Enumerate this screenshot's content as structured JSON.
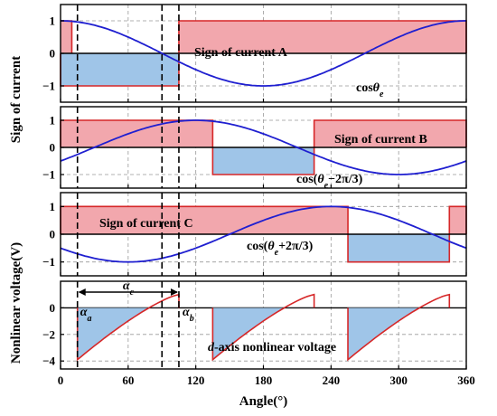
{
  "chart_data": {
    "type": "line",
    "xlabel": "Angle(°)",
    "x_ticks": [
      0,
      60,
      120,
      180,
      240,
      300,
      360
    ],
    "xlim": [
      0,
      360
    ],
    "ylabel_top": "Sign of current",
    "ylabel_bottom": "Nonlinear voltage(V)",
    "colors": {
      "red_line": "#d62728",
      "red_fill": "#f2a7ad",
      "blue_fill": "#9fc5e8",
      "cos_line": "#1f1fd0",
      "dashed_marker": "#000000",
      "grid": "#999999"
    },
    "panels": [
      {
        "id": "A",
        "ylim": [
          -1.5,
          1.5
        ],
        "y_ticks": [
          -1,
          0,
          1
        ],
        "sign_label": "Sign of current A",
        "cos_label": "cosθ",
        "cos_label_sub": "e",
        "sign_segments": [
          {
            "x0": 0,
            "x1": 105,
            "value": -1
          },
          {
            "x0": 105,
            "x1": 360,
            "value": 1
          }
        ],
        "sign_plus_start": [
          0,
          10
        ],
        "cos_phase_deg": 0
      },
      {
        "id": "B",
        "ylim": [
          -1.5,
          1.5
        ],
        "y_ticks": [
          -1,
          0,
          1
        ],
        "sign_label": "Sign of current B",
        "cos_label": "cos(θ",
        "cos_label_sub": "e",
        "cos_label_tail": "−2π/3)",
        "sign_segments": [
          {
            "x0": 0,
            "x1": 135,
            "value": 1
          },
          {
            "x0": 135,
            "x1": 225,
            "value": -1
          },
          {
            "x0": 225,
            "x1": 360,
            "value": 1
          }
        ],
        "cos_phase_deg": -120
      },
      {
        "id": "C",
        "ylim": [
          -1.5,
          1.5
        ],
        "y_ticks": [
          -1,
          0,
          1
        ],
        "sign_label": "Sign of current C",
        "cos_label": "cos(θ",
        "cos_label_sub": "e",
        "cos_label_tail": "+2π/3)",
        "sign_segments": [
          {
            "x0": 0,
            "x1": 255,
            "value": 1
          },
          {
            "x0": 255,
            "x1": 345,
            "value": -1
          },
          {
            "x0": 345,
            "x1": 360,
            "value": 1
          }
        ],
        "cos_phase_deg": 120
      },
      {
        "id": "D",
        "ylim": [
          -4.6,
          2.0
        ],
        "y_ticks": [
          -4,
          -2,
          0
        ],
        "label": "d-axis nonlinear voltage",
        "label_prefix": "d",
        "label_rest": "-axis nonlinear voltage",
        "segments": [
          {
            "x0": 15,
            "x1": 105,
            "y0": -3.9,
            "y1": 1.0
          },
          {
            "x0": 135,
            "x1": 225,
            "y0": -3.9,
            "y1": 1.0
          },
          {
            "x0": 255,
            "x1": 345,
            "y0": -3.9,
            "y1": 1.0
          }
        ]
      }
    ],
    "markers": [
      {
        "x": 15,
        "label": "α",
        "sub": "a"
      },
      {
        "x": 90,
        "label": "",
        "sub": ""
      },
      {
        "x": 105,
        "label": "α",
        "sub": "b"
      }
    ],
    "interval_label": "α",
    "interval_label_sub": "c"
  }
}
